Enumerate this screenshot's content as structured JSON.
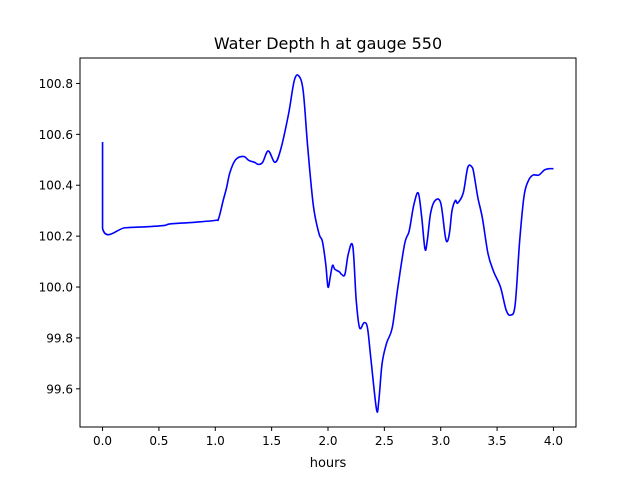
{
  "chart_data": {
    "type": "line",
    "title": "Water Depth h at gauge 550",
    "xlabel": "hours",
    "ylabel": "",
    "xlim": [
      -0.2,
      4.2
    ],
    "ylim": [
      99.45,
      100.9
    ],
    "xticks": [
      0.0,
      0.5,
      1.0,
      1.5,
      2.0,
      2.5,
      3.0,
      3.5,
      4.0
    ],
    "xtick_labels": [
      "0.0",
      "0.5",
      "1.0",
      "1.5",
      "2.0",
      "2.5",
      "3.0",
      "3.5",
      "4.0"
    ],
    "yticks": [
      99.6,
      99.8,
      100.0,
      100.2,
      100.4,
      100.6,
      100.8
    ],
    "ytick_labels": [
      "99.6",
      "99.8",
      "100.0",
      "100.2",
      "100.4",
      "100.6",
      "100.8"
    ],
    "grid": false,
    "series": [
      {
        "color": "#0000ff",
        "x": [
          0.0,
          0.0,
          0.0,
          0.2,
          0.4,
          0.55,
          0.6,
          0.8,
          1.0,
          1.03,
          1.07,
          1.1,
          1.13,
          1.18,
          1.25,
          1.3,
          1.35,
          1.38,
          1.42,
          1.47,
          1.53,
          1.58,
          1.65,
          1.7,
          1.74,
          1.78,
          1.82,
          1.87,
          1.92,
          1.95,
          1.98,
          2.0,
          2.02,
          2.04,
          2.06,
          2.1,
          2.12,
          2.15,
          2.18,
          2.22,
          2.25,
          2.28,
          2.32,
          2.35,
          2.38,
          2.43,
          2.45,
          2.48,
          2.52,
          2.57,
          2.62,
          2.68,
          2.72,
          2.76,
          2.8,
          2.83,
          2.86,
          2.88,
          2.91,
          2.95,
          3.0,
          3.04,
          3.06,
          3.08,
          3.1,
          3.13,
          3.15,
          3.2,
          3.24,
          3.28,
          3.3,
          3.33,
          3.37,
          3.42,
          3.47,
          3.53,
          3.58,
          3.62,
          3.66,
          3.7,
          3.74,
          3.78,
          3.82,
          3.87,
          3.92,
          3.96,
          4.0
        ],
        "y": [
          100.57,
          100.57,
          100.23,
          100.233,
          100.237,
          100.242,
          100.248,
          100.254,
          100.262,
          100.27,
          100.34,
          100.39,
          100.45,
          100.5,
          100.513,
          100.497,
          100.49,
          100.482,
          100.49,
          100.535,
          100.49,
          100.54,
          100.68,
          100.81,
          100.83,
          100.77,
          100.55,
          100.32,
          100.21,
          100.18,
          100.09,
          100.0,
          100.04,
          100.085,
          100.07,
          100.06,
          100.05,
          100.05,
          100.13,
          100.16,
          99.95,
          99.84,
          99.86,
          99.84,
          99.72,
          99.52,
          99.55,
          99.7,
          99.78,
          99.84,
          100.0,
          100.17,
          100.22,
          100.32,
          100.37,
          100.28,
          100.15,
          100.18,
          100.29,
          100.34,
          100.33,
          100.2,
          100.18,
          100.22,
          100.3,
          100.34,
          100.33,
          100.37,
          100.47,
          100.47,
          100.43,
          100.35,
          100.27,
          100.13,
          100.06,
          100.0,
          99.91,
          99.89,
          99.93,
          100.18,
          100.36,
          100.42,
          100.44,
          100.44,
          100.46,
          100.465,
          100.465
        ]
      }
    ]
  }
}
